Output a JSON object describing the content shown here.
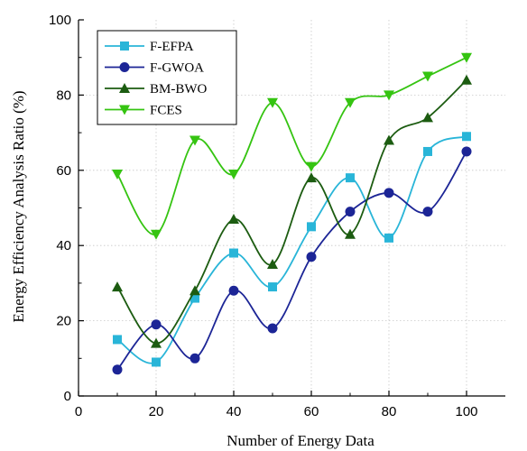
{
  "chart_data": {
    "type": "line",
    "xlabel": "Number of Energy Data",
    "ylabel": "Energy Efficiency Analysis Ratio (%)",
    "xlim": [
      0,
      110
    ],
    "ylim": [
      0,
      100
    ],
    "x_ticks": [
      0,
      20,
      40,
      60,
      80,
      100
    ],
    "y_ticks": [
      0,
      20,
      40,
      60,
      80,
      100
    ],
    "grid": true,
    "legend_position": "top-left",
    "x": [
      10,
      20,
      30,
      40,
      50,
      60,
      70,
      80,
      90,
      100
    ],
    "series": [
      {
        "name": "F-EFPA",
        "color": "#29b5d8",
        "marker": "square",
        "values": [
          15,
          9,
          26,
          38,
          29,
          45,
          58,
          42,
          65,
          69
        ]
      },
      {
        "name": "F-GWOA",
        "color": "#1c2596",
        "marker": "circle",
        "values": [
          7,
          19,
          10,
          28,
          18,
          37,
          49,
          54,
          49,
          65
        ]
      },
      {
        "name": "BM-BWO",
        "color": "#1c5c11",
        "marker": "triangle-up",
        "values": [
          29,
          14,
          28,
          47,
          35,
          58,
          43,
          68,
          74,
          84
        ]
      },
      {
        "name": "FCES",
        "color": "#35c411",
        "marker": "triangle-down",
        "values": [
          59,
          43,
          68,
          59,
          78,
          61,
          78,
          80,
          85,
          90
        ]
      }
    ]
  }
}
